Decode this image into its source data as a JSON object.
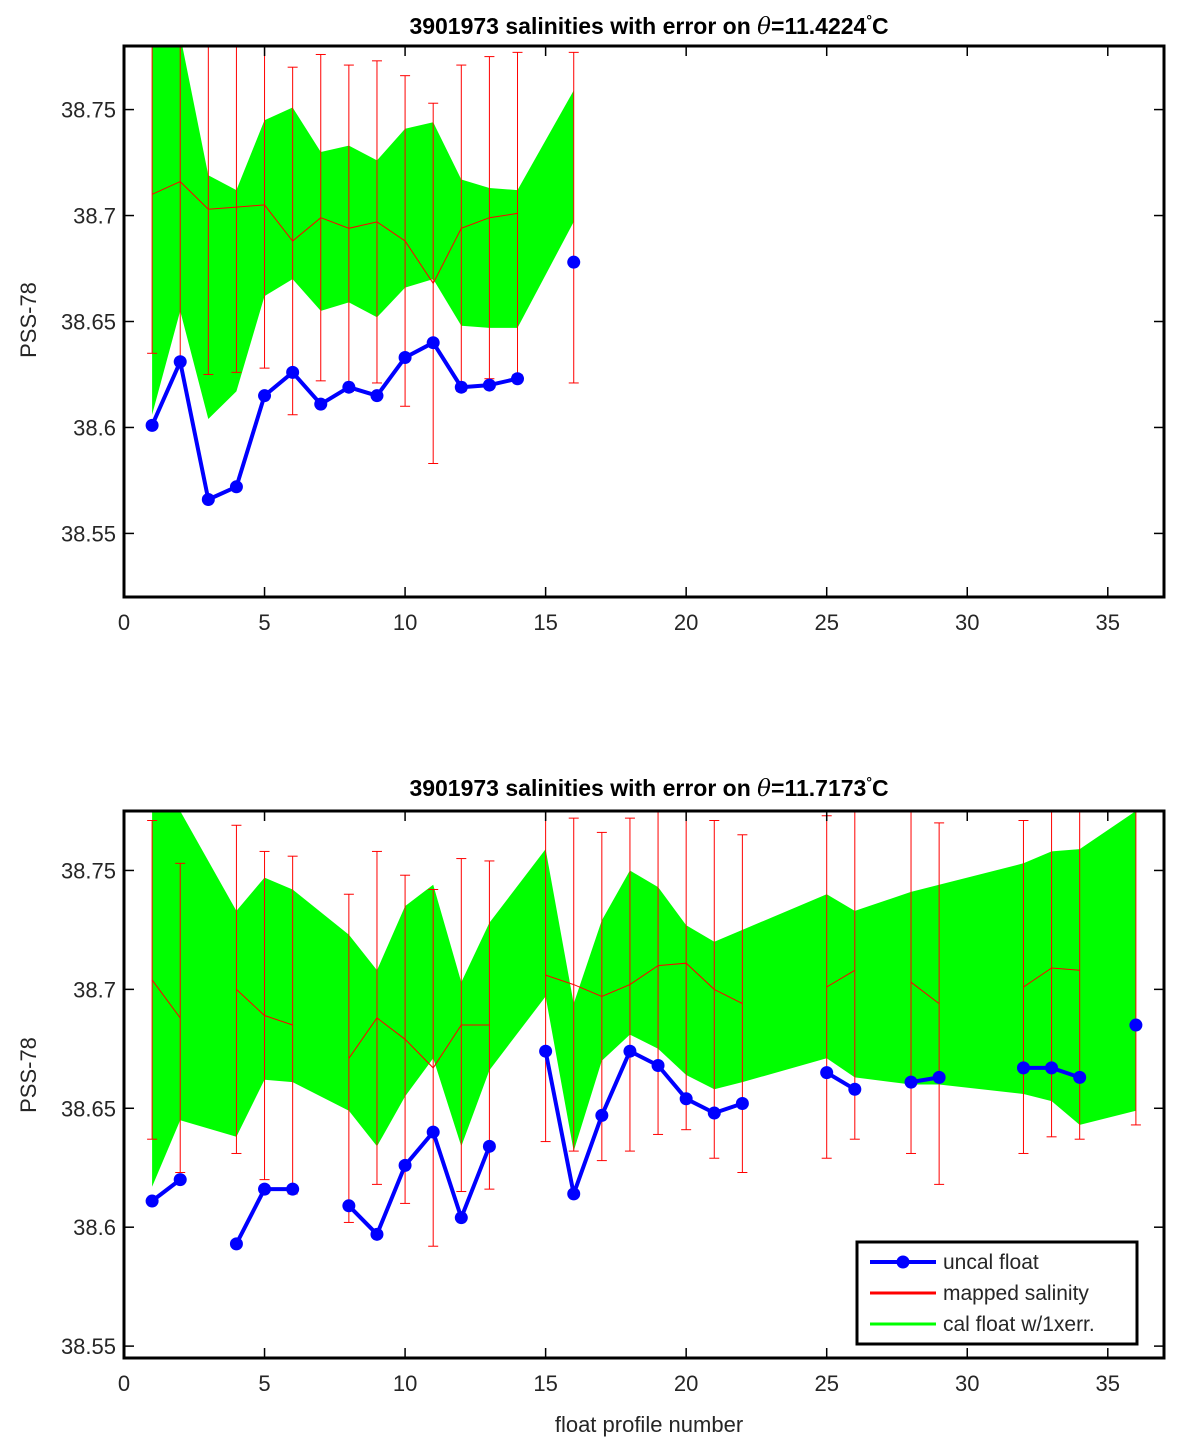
{
  "chart_data": [
    {
      "type": "line",
      "title": {
        "prefix": "3901973 salinities with error on ",
        "theta": "θ",
        "value": "=11.4224",
        "degree": "°",
        "unit": "C"
      },
      "xlabel": "",
      "ylabel": "PSS-78",
      "xlim": [
        0,
        37
      ],
      "ylim": [
        38.52,
        38.78
      ],
      "xticks": [
        0,
        5,
        10,
        15,
        20,
        25,
        30,
        35
      ],
      "yticks": [
        38.55,
        38.6,
        38.65,
        38.7,
        38.75
      ],
      "ytick_labels": [
        "38.55",
        "38.6",
        "38.65",
        "38.7",
        "38.75"
      ],
      "grid": false,
      "series": [
        {
          "kind": "uncal",
          "color": "#0000ff",
          "points": [
            [
              1,
              38.601
            ],
            [
              2,
              38.631
            ],
            [
              3,
              38.566
            ],
            [
              4,
              38.572
            ],
            [
              5,
              38.615
            ],
            [
              6,
              38.626
            ],
            [
              7,
              38.611
            ],
            [
              8,
              38.619
            ],
            [
              9,
              38.615
            ],
            [
              10,
              38.633
            ],
            [
              11,
              38.64
            ],
            [
              12,
              38.619
            ],
            [
              13,
              38.62
            ],
            [
              14,
              38.623
            ],
            [
              16,
              38.678
            ]
          ]
        },
        {
          "kind": "mapped",
          "color": "#ff0000",
          "points": [
            [
              1,
              38.71
            ],
            [
              2,
              38.716
            ],
            [
              3,
              38.703
            ],
            [
              4,
              38.704
            ],
            [
              5,
              38.705
            ],
            [
              6,
              38.688
            ],
            [
              7,
              38.699
            ],
            [
              8,
              38.694
            ],
            [
              9,
              38.697
            ],
            [
              10,
              38.688
            ],
            [
              11,
              38.668
            ],
            [
              12,
              38.694
            ],
            [
              13,
              38.699
            ],
            [
              14,
              38.701
            ],
            [
              16,
              38.699
            ]
          ],
          "errors": [
            0.075,
            0.085,
            0.078,
            0.078,
            0.077,
            0.082,
            0.077,
            0.077,
            0.076,
            0.078,
            0.085,
            0.077,
            0.076,
            0.076,
            0.078
          ]
        },
        {
          "kind": "cal",
          "color": "#00ff00",
          "x": [
            1,
            2,
            3,
            4,
            5,
            6,
            7,
            8,
            9,
            10,
            11,
            12,
            13,
            14,
            16
          ],
          "upper": [
            38.785,
            38.785,
            38.719,
            38.712,
            38.745,
            38.751,
            38.73,
            38.733,
            38.726,
            38.741,
            38.744,
            38.717,
            38.713,
            38.712,
            38.759
          ],
          "lower": [
            38.606,
            38.655,
            38.604,
            38.617,
            38.662,
            38.67,
            38.655,
            38.659,
            38.652,
            38.666,
            38.67,
            38.648,
            38.647,
            38.647,
            38.697
          ]
        }
      ]
    },
    {
      "type": "line",
      "title": {
        "prefix": "3901973 salinities with error on ",
        "theta": "θ",
        "value": "=11.7173",
        "degree": "°",
        "unit": "C"
      },
      "xlabel": "float profile number",
      "ylabel": "PSS-78",
      "xlim": [
        0,
        37
      ],
      "ylim": [
        38.545,
        38.775
      ],
      "xticks": [
        0,
        5,
        10,
        15,
        20,
        25,
        30,
        35
      ],
      "yticks": [
        38.55,
        38.6,
        38.65,
        38.7,
        38.75
      ],
      "ytick_labels": [
        "38.55",
        "38.6",
        "38.65",
        "38.7",
        "38.75"
      ],
      "grid": false,
      "legend": {
        "placement": "bottom-right",
        "entries": [
          {
            "label": "uncal float",
            "kind": "uncal"
          },
          {
            "label": "mapped salinity",
            "kind": "mapped"
          },
          {
            "label": "cal float w/1xerr.",
            "kind": "cal"
          }
        ]
      },
      "series": [
        {
          "kind": "uncal",
          "color": "#0000ff",
          "points": [
            [
              1,
              38.611
            ],
            [
              2,
              38.62
            ],
            [
              4,
              38.593
            ],
            [
              5,
              38.616
            ],
            [
              6,
              38.616
            ],
            [
              8,
              38.609
            ],
            [
              9,
              38.597
            ],
            [
              10,
              38.626
            ],
            [
              11,
              38.64
            ],
            [
              12,
              38.604
            ],
            [
              13,
              38.634
            ],
            [
              15,
              38.674
            ],
            [
              16,
              38.614
            ],
            [
              17,
              38.647
            ],
            [
              18,
              38.674
            ],
            [
              19,
              38.668
            ],
            [
              20,
              38.654
            ],
            [
              21,
              38.648
            ],
            [
              22,
              38.652
            ],
            [
              25,
              38.665
            ],
            [
              26,
              38.658
            ],
            [
              28,
              38.661
            ],
            [
              29,
              38.663
            ],
            [
              32,
              38.667
            ],
            [
              33,
              38.667
            ],
            [
              34,
              38.663
            ],
            [
              36,
              38.685
            ]
          ]
        },
        {
          "kind": "mapped",
          "color": "#ff0000",
          "points": [
            [
              1,
              38.704
            ],
            [
              2,
              38.688
            ],
            [
              4,
              38.7
            ],
            [
              5,
              38.689
            ],
            [
              6,
              38.685
            ],
            [
              8,
              38.671
            ],
            [
              9,
              38.688
            ],
            [
              10,
              38.679
            ],
            [
              11,
              38.667
            ],
            [
              12,
              38.685
            ],
            [
              13,
              38.685
            ],
            [
              15,
              38.706
            ],
            [
              16,
              38.702
            ],
            [
              17,
              38.697
            ],
            [
              18,
              38.702
            ],
            [
              19,
              38.71
            ],
            [
              20,
              38.711
            ],
            [
              21,
              38.7
            ],
            [
              22,
              38.694
            ],
            [
              25,
              38.701
            ],
            [
              26,
              38.708
            ],
            [
              28,
              38.703
            ],
            [
              29,
              38.694
            ],
            [
              32,
              38.701
            ],
            [
              33,
              38.709
            ],
            [
              34,
              38.708
            ],
            [
              36,
              38.71
            ]
          ],
          "errors": [
            0.067,
            0.065,
            0.069,
            0.069,
            0.071,
            0.069,
            0.07,
            0.069,
            0.075,
            0.07,
            0.069,
            0.07,
            0.07,
            0.069,
            0.07,
            0.071,
            0.07,
            0.071,
            0.071,
            0.072,
            0.071,
            0.072,
            0.076,
            0.07,
            0.071,
            0.071,
            0.067
          ]
        },
        {
          "kind": "cal",
          "color": "#00ff00",
          "x": [
            1,
            2,
            4,
            5,
            6,
            8,
            9,
            10,
            11,
            12,
            13,
            15,
            16,
            17,
            18,
            19,
            20,
            21,
            22,
            25,
            26,
            28,
            29,
            32,
            33,
            34,
            36
          ],
          "upper": [
            38.775,
            38.775,
            38.733,
            38.747,
            38.742,
            38.723,
            38.708,
            38.735,
            38.744,
            38.703,
            38.728,
            38.759,
            38.694,
            38.729,
            38.75,
            38.743,
            38.727,
            38.72,
            38.725,
            38.74,
            38.733,
            38.741,
            38.744,
            38.753,
            38.758,
            38.759,
            38.775
          ],
          "lower": [
            38.617,
            38.645,
            38.638,
            38.662,
            38.661,
            38.649,
            38.634,
            38.655,
            38.671,
            38.634,
            38.666,
            38.697,
            38.632,
            38.67,
            38.681,
            38.675,
            38.664,
            38.658,
            38.661,
            38.671,
            38.663,
            38.66,
            38.66,
            38.656,
            38.653,
            38.643,
            38.649
          ]
        }
      ]
    }
  ]
}
